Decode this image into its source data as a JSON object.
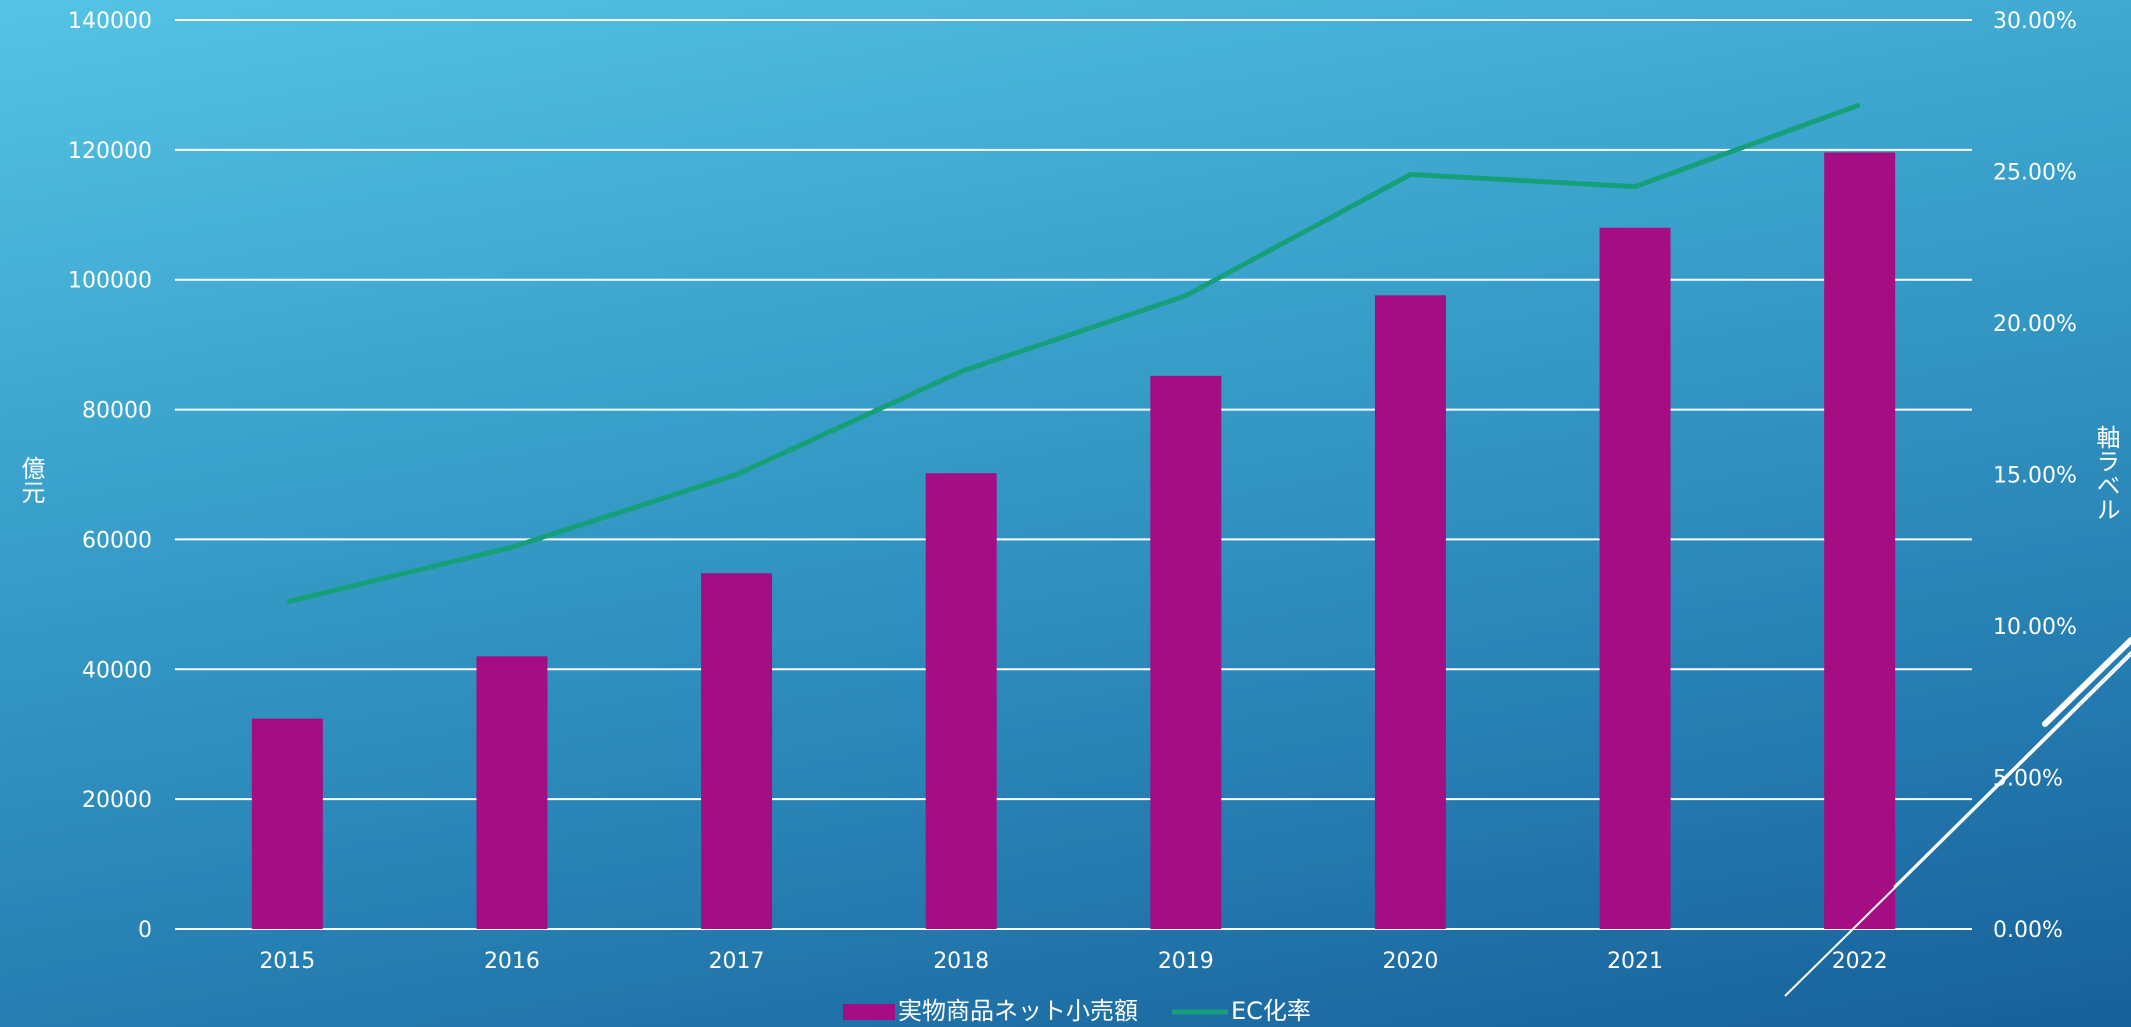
{
  "chart_data": {
    "type": "bar",
    "categories": [
      "2015",
      "2016",
      "2017",
      "2018",
      "2019",
      "2020",
      "2021",
      "2022"
    ],
    "series": [
      {
        "name": "実物商品ネット小売額",
        "type": "bar",
        "axis": "left",
        "color": "#a50e82",
        "values": [
          32400,
          42000,
          54800,
          70200,
          85200,
          97600,
          108000,
          119600
        ]
      },
      {
        "name": "EC化率",
        "type": "line",
        "axis": "right",
        "color": "#16a07a",
        "values": [
          0.108,
          0.126,
          0.15,
          0.184,
          0.209,
          0.249,
          0.245,
          0.272
        ]
      }
    ],
    "y_left": {
      "label": "億元",
      "range": [
        0,
        140000
      ],
      "ticks": [
        "0",
        "20000",
        "40000",
        "60000",
        "80000",
        "100000",
        "120000",
        "140000"
      ]
    },
    "y_right": {
      "label": "軸ラベル",
      "range": [
        0,
        0.3
      ],
      "ticks": [
        "0.00%",
        "5.00%",
        "10.00%",
        "15.00%",
        "20.00%",
        "25.00%",
        "30.00%"
      ]
    },
    "grid": true,
    "legend": "bottom-center"
  }
}
